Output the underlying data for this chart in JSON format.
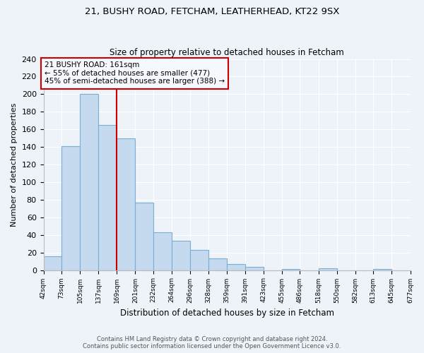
{
  "title_line1": "21, BUSHY ROAD, FETCHAM, LEATHERHEAD, KT22 9SX",
  "title_line2": "Size of property relative to detached houses in Fetcham",
  "xlabel": "Distribution of detached houses by size in Fetcham",
  "ylabel": "Number of detached properties",
  "bar_color": "#c5d9ef",
  "bar_edge_color": "#7aafd4",
  "vline_color": "#cc0000",
  "annotation_title": "21 BUSHY ROAD: 161sqm",
  "annotation_line1": "← 55% of detached houses are smaller (477)",
  "annotation_line2": "45% of semi-detached houses are larger (388) →",
  "vline_x_bin": 4,
  "bins": [
    42,
    73,
    105,
    137,
    169,
    201,
    232,
    264,
    296,
    328,
    359,
    391,
    423,
    455,
    486,
    518,
    550,
    582,
    613,
    645,
    677
  ],
  "counts": [
    16,
    141,
    200,
    165,
    150,
    77,
    43,
    33,
    23,
    13,
    7,
    4,
    0,
    1,
    0,
    2,
    0,
    0,
    1,
    0
  ],
  "ylim": [
    0,
    240
  ],
  "yticks": [
    0,
    20,
    40,
    60,
    80,
    100,
    120,
    140,
    160,
    180,
    200,
    220,
    240
  ],
  "footnote1": "Contains HM Land Registry data © Crown copyright and database right 2024.",
  "footnote2": "Contains public sector information licensed under the Open Government Licence v3.0.",
  "background_color": "#eef2f9",
  "grid_color": "#ffffff",
  "annotation_box_color": "#f5f8fd"
}
